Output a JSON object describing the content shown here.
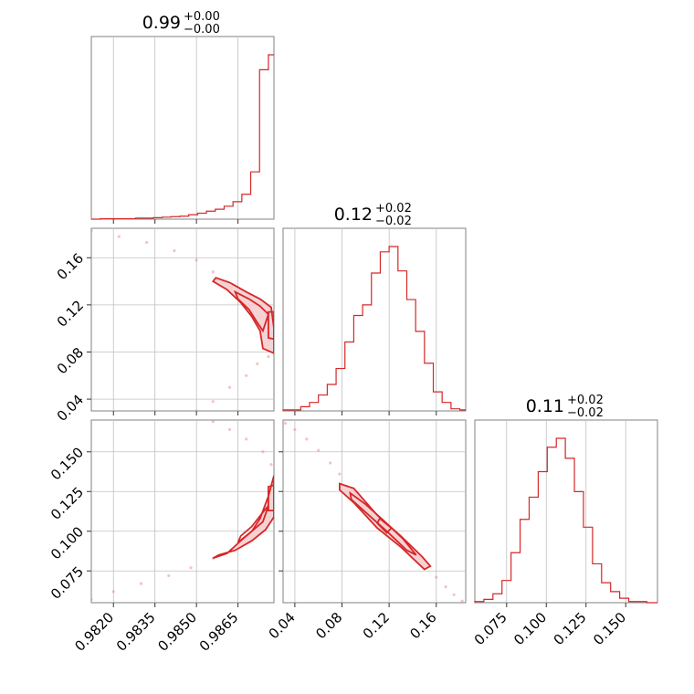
{
  "chart_data": {
    "type": "corner",
    "color": "#d62728",
    "parameters": [
      {
        "key": "p1",
        "median": "0.99",
        "plus": "+0.00",
        "minus": "−0.00",
        "range": [
          0.9812,
          0.9878
        ],
        "ticks": [
          0.982,
          0.9835,
          0.985,
          0.9865
        ],
        "tick_labels": [
          "0.9820",
          "0.9835",
          "0.9850",
          "0.9865"
        ]
      },
      {
        "key": "p2",
        "median": "0.12",
        "plus": "+0.02",
        "minus": "−0.02",
        "range": [
          0.03,
          0.185
        ],
        "ticks": [
          0.04,
          0.08,
          0.12,
          0.16
        ],
        "tick_labels": [
          "0.04",
          "0.08",
          "0.12",
          "0.16"
        ]
      },
      {
        "key": "p3",
        "median": "0.11",
        "plus": "+0.02",
        "minus": "−0.02",
        "range": [
          0.055,
          0.17
        ],
        "ticks": [
          0.075,
          0.1,
          0.125,
          0.15
        ],
        "tick_labels": [
          "0.075",
          "0.100",
          "0.125",
          "0.150"
        ]
      }
    ],
    "histograms": [
      {
        "param": "p1",
        "edges": [
          0.9812,
          0.98152,
          0.98184,
          0.98216,
          0.98248,
          0.9828,
          0.98312,
          0.98344,
          0.98376,
          0.98408,
          0.9844,
          0.98472,
          0.98504,
          0.98536,
          0.98568,
          0.986,
          0.98632,
          0.98664,
          0.98696,
          0.98728,
          0.9876,
          0.9878
        ],
        "counts": [
          0,
          1,
          1,
          1,
          1,
          2,
          2,
          3,
          4,
          5,
          6,
          9,
          12,
          16,
          20,
          26,
          35,
          50,
          95,
          300,
          330
        ]
      },
      {
        "param": "p2",
        "edges": [
          0.03,
          0.0375,
          0.045,
          0.0525,
          0.06,
          0.0675,
          0.075,
          0.0825,
          0.09,
          0.0975,
          0.105,
          0.1125,
          0.12,
          0.1275,
          0.135,
          0.1425,
          0.15,
          0.1575,
          0.165,
          0.1725,
          0.18,
          0.185
        ],
        "counts": [
          1,
          1,
          4,
          8,
          15,
          25,
          40,
          65,
          90,
          100,
          130,
          150,
          155,
          132,
          105,
          75,
          45,
          18,
          8,
          2,
          1
        ]
      },
      {
        "param": "p3",
        "edges": [
          0.055,
          0.0607,
          0.0664,
          0.0721,
          0.0778,
          0.0835,
          0.0892,
          0.0949,
          0.1006,
          0.1063,
          0.112,
          0.1177,
          0.1234,
          0.1291,
          0.1348,
          0.1405,
          0.1462,
          0.1519,
          0.1576,
          0.1633,
          0.17
        ],
        "counts": [
          1,
          3,
          8,
          20,
          45,
          75,
          95,
          118,
          140,
          148,
          130,
          100,
          68,
          35,
          18,
          10,
          4,
          1,
          1,
          0
        ]
      }
    ],
    "contours": [
      {
        "x_param": "p1",
        "y_param": "p2",
        "levels": [
          [
            [
              0.9857,
              0.143
            ],
            [
              0.9862,
              0.139
            ],
            [
              0.9868,
              0.131
            ],
            [
              0.9873,
              0.125
            ],
            [
              0.9877,
              0.118
            ],
            [
              0.9878,
              0.1
            ],
            [
              0.9878,
              0.079
            ],
            [
              0.9874,
              0.083
            ],
            [
              0.9873,
              0.098
            ],
            [
              0.987,
              0.11
            ],
            [
              0.9866,
              0.122
            ],
            [
              0.9861,
              0.133
            ],
            [
              0.9856,
              0.14
            ]
          ],
          [
            [
              0.9864,
              0.131
            ],
            [
              0.9869,
              0.125
            ],
            [
              0.9873,
              0.119
            ],
            [
              0.9876,
              0.112
            ],
            [
              0.9874,
              0.098
            ],
            [
              0.9872,
              0.105
            ],
            [
              0.9869,
              0.116
            ],
            [
              0.9865,
              0.125
            ]
          ],
          [
            [
              0.9876,
              0.114
            ],
            [
              0.9878,
              0.114
            ],
            [
              0.9878,
              0.091
            ],
            [
              0.9876,
              0.092
            ]
          ]
        ]
      },
      {
        "x_param": "p1",
        "y_param": "p3",
        "levels": [
          [
            [
              0.9856,
              0.083
            ],
            [
              0.9861,
              0.086
            ],
            [
              0.9866,
              0.094
            ],
            [
              0.987,
              0.1
            ],
            [
              0.9873,
              0.108
            ],
            [
              0.9876,
              0.122
            ],
            [
              0.9878,
              0.135
            ],
            [
              0.9878,
              0.109
            ],
            [
              0.9875,
              0.101
            ],
            [
              0.987,
              0.094
            ],
            [
              0.9864,
              0.088
            ],
            [
              0.9858,
              0.085
            ]
          ],
          [
            [
              0.9865,
              0.093
            ],
            [
              0.987,
              0.1
            ],
            [
              0.9874,
              0.106
            ],
            [
              0.9876,
              0.116
            ],
            [
              0.9874,
              0.112
            ],
            [
              0.987,
              0.103
            ],
            [
              0.9866,
              0.097
            ]
          ],
          [
            [
              0.9876,
              0.113
            ],
            [
              0.9878,
              0.113
            ],
            [
              0.9878,
              0.129
            ],
            [
              0.9876,
              0.128
            ]
          ]
        ]
      },
      {
        "x_param": "p2",
        "y_param": "p3",
        "levels": [
          [
            [
              0.078,
              0.13
            ],
            [
              0.09,
              0.127
            ],
            [
              0.11,
              0.11
            ],
            [
              0.13,
              0.097
            ],
            [
              0.148,
              0.084
            ],
            [
              0.155,
              0.078
            ],
            [
              0.15,
              0.076
            ],
            [
              0.13,
              0.09
            ],
            [
              0.11,
              0.102
            ],
            [
              0.09,
              0.118
            ],
            [
              0.078,
              0.126
            ]
          ],
          [
            [
              0.087,
              0.124
            ],
            [
              0.1,
              0.117
            ],
            [
              0.115,
              0.107
            ],
            [
              0.132,
              0.095
            ],
            [
              0.143,
              0.085
            ],
            [
              0.135,
              0.088
            ],
            [
              0.118,
              0.1
            ],
            [
              0.1,
              0.112
            ],
            [
              0.088,
              0.12
            ]
          ],
          [
            [
              0.112,
              0.108
            ],
            [
              0.122,
              0.102
            ],
            [
              0.118,
              0.099
            ],
            [
              0.11,
              0.105
            ]
          ]
        ]
      }
    ],
    "scatter_trails": [
      {
        "x_param": "p1",
        "y_param": "p2",
        "points": [
          [
            0.9812,
            0.183
          ],
          [
            0.9822,
            0.178
          ],
          [
            0.9832,
            0.173
          ],
          [
            0.9842,
            0.166
          ],
          [
            0.985,
            0.158
          ],
          [
            0.9856,
            0.148
          ],
          [
            0.9868,
            0.06
          ],
          [
            0.9872,
            0.07
          ],
          [
            0.9876,
            0.076
          ],
          [
            0.9862,
            0.05
          ],
          [
            0.9856,
            0.038
          ],
          [
            0.985,
            0.03
          ]
        ]
      },
      {
        "x_param": "p1",
        "y_param": "p3",
        "points": [
          [
            0.9812,
            0.057
          ],
          [
            0.982,
            0.062
          ],
          [
            0.983,
            0.067
          ],
          [
            0.984,
            0.072
          ],
          [
            0.9848,
            0.077
          ],
          [
            0.9856,
            0.083
          ],
          [
            0.9856,
            0.169
          ],
          [
            0.9862,
            0.164
          ],
          [
            0.9868,
            0.158
          ],
          [
            0.9874,
            0.15
          ],
          [
            0.9877,
            0.142
          ]
        ]
      },
      {
        "x_param": "p2",
        "y_param": "p3",
        "points": [
          [
            0.032,
            0.168
          ],
          [
            0.04,
            0.164
          ],
          [
            0.05,
            0.158
          ],
          [
            0.06,
            0.151
          ],
          [
            0.07,
            0.143
          ],
          [
            0.078,
            0.136
          ],
          [
            0.16,
            0.071
          ],
          [
            0.168,
            0.065
          ],
          [
            0.175,
            0.06
          ],
          [
            0.182,
            0.056
          ]
        ]
      }
    ]
  },
  "titles": {
    "p1": {
      "median": "0.99",
      "plus": "+0.00",
      "minus": "−0.00"
    },
    "p2": {
      "median": "0.12",
      "plus": "+0.02",
      "minus": "−0.02"
    },
    "p3": {
      "median": "0.11",
      "plus": "+0.02",
      "minus": "−0.02"
    }
  }
}
